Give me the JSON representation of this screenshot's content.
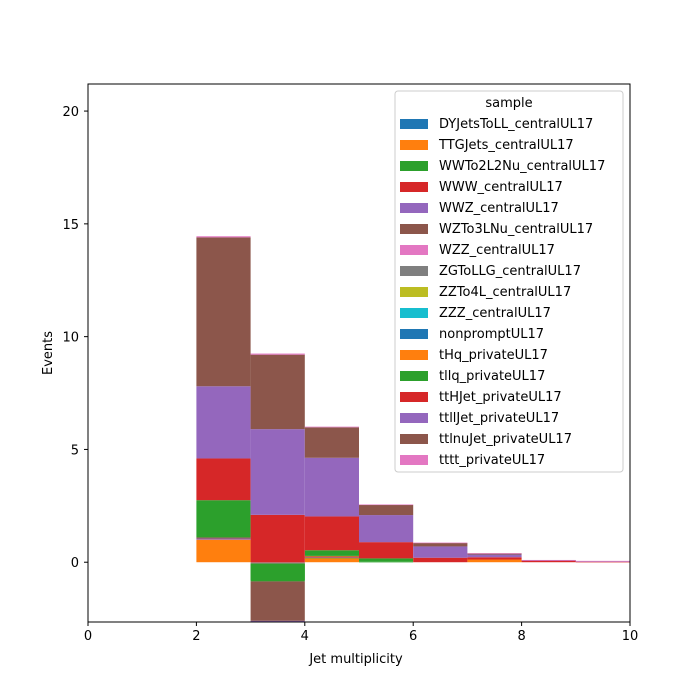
{
  "chart_data": {
    "type": "bar",
    "stacked": true,
    "histogram": true,
    "xlabel": "Jet multiplicity",
    "ylabel": "Events",
    "xlim": [
      0,
      10
    ],
    "ylim": [
      -2.65,
      21.2
    ],
    "xticks": [
      0,
      2,
      4,
      6,
      8,
      10
    ],
    "yticks": [
      0,
      5,
      10,
      15,
      20
    ],
    "bin_edges": [
      0,
      1,
      2,
      3,
      4,
      5,
      6,
      7,
      8,
      9,
      10
    ],
    "legend_title": "sample",
    "legend_position": "upper right",
    "series": [
      {
        "name": "DYJetsToLL_centralUL17",
        "color": "#1f77b4",
        "values": [
          0,
          0,
          0,
          0,
          0,
          0,
          0,
          0,
          0,
          0
        ]
      },
      {
        "name": "TTGJets_centralUL17",
        "color": "#ff7f0e",
        "values": [
          0,
          0,
          1.0,
          0,
          0.18,
          0,
          0,
          0.12,
          0,
          0
        ]
      },
      {
        "name": "WWTo2L2Nu_centralUL17",
        "color": "#2ca02c",
        "values": [
          0,
          0,
          0,
          0,
          0.02,
          0.02,
          0,
          0,
          0,
          0
        ]
      },
      {
        "name": "WWW_centralUL17",
        "color": "#d62728",
        "values": [
          0,
          0,
          0,
          0,
          0.02,
          0,
          0,
          0,
          0,
          0
        ]
      },
      {
        "name": "WWZ_centralUL17",
        "color": "#9467bd",
        "values": [
          0,
          0,
          0.05,
          0,
          0.02,
          0,
          0,
          0,
          0,
          0
        ]
      },
      {
        "name": "WZTo3LNu_centralUL17",
        "color": "#8c564b",
        "values": [
          0,
          0,
          0.05,
          -0.03,
          0.02,
          0,
          0,
          0,
          0,
          0
        ]
      },
      {
        "name": "WZZ_centralUL17",
        "color": "#e377c2",
        "values": [
          0,
          0,
          0,
          -0.03,
          0,
          0,
          0,
          0,
          0,
          0
        ]
      },
      {
        "name": "ZGToLLG_centralUL17",
        "color": "#7f7f7f",
        "values": [
          0,
          0,
          0,
          -0.02,
          0,
          0,
          0,
          0,
          0,
          0
        ]
      },
      {
        "name": "ZZTo4L_centralUL17",
        "color": "#bcbd22",
        "values": [
          0,
          0,
          0,
          -0.02,
          0,
          0,
          0,
          0,
          0,
          0
        ]
      },
      {
        "name": "ZZZ_centralUL17",
        "color": "#17becf",
        "values": [
          0,
          0,
          0,
          0,
          0,
          0,
          0,
          0,
          0,
          0
        ]
      },
      {
        "name": "nonpromptUL17",
        "color": "#1f77b4",
        "values": [
          0,
          0,
          0,
          0,
          0,
          0,
          0,
          0,
          0,
          0
        ]
      },
      {
        "name": "tHq_privateUL17",
        "color": "#ff7f0e",
        "values": [
          0,
          0,
          0,
          0,
          0.02,
          0,
          0,
          0,
          0,
          0
        ]
      },
      {
        "name": "tllq_privateUL17",
        "color": "#2ca02c",
        "values": [
          0,
          0,
          1.65,
          -0.75,
          0.25,
          0.15,
          0,
          0,
          0,
          0
        ]
      },
      {
        "name": "ttHJet_privateUL17",
        "color": "#d62728",
        "values": [
          0,
          0,
          1.85,
          2.1,
          1.5,
          0.72,
          0.2,
          0.1,
          0.07,
          0.02
        ]
      },
      {
        "name": "ttllJet_privateUL17",
        "color": "#9467bd",
        "values": [
          0,
          0,
          3.2,
          3.8,
          2.6,
          1.2,
          0.5,
          0.12,
          0.02,
          0.03
        ]
      },
      {
        "name": "ttlnuJet_privateUL17",
        "color": "#8c564b",
        "values": [
          0,
          0,
          6.6,
          3.3,
          1.35,
          0.45,
          0.15,
          0.05,
          0,
          0
        ]
      },
      {
        "name": "tttt_privateUL17",
        "color": "#e377c2",
        "values": [
          0,
          0,
          0.05,
          0.05,
          0.03,
          0.02,
          0.02,
          0.01,
          0.01,
          0.01
        ]
      }
    ],
    "first_bar_extra": [
      {
        "name": "ttlnuJet_privateUL17",
        "color": "#8c564b",
        "from": 6.2,
        "to": 1.1
      },
      {
        "name": "WWZ_centralUL17",
        "color": "#9467bd",
        "from": 1.1,
        "to": 1.05
      }
    ],
    "negative_stack_bin3": [
      {
        "color": "#2ca02c",
        "from": -0.05,
        "to": -0.8
      },
      {
        "color": "#8c564b",
        "from": -0.85,
        "to": -2.6
      },
      {
        "color": "#9467bd",
        "from": -2.6,
        "to": -2.65
      }
    ]
  }
}
